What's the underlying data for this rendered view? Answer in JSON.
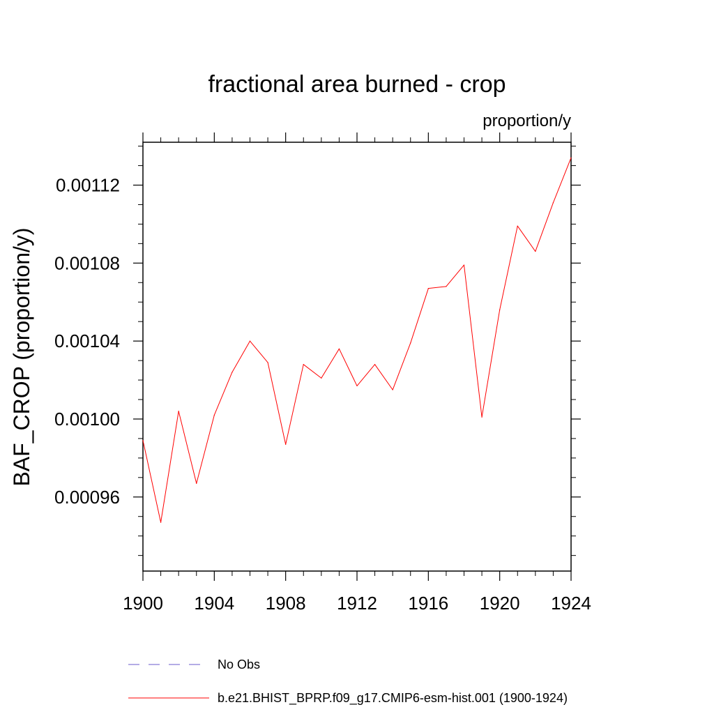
{
  "chart_data": {
    "type": "line",
    "title": "fractional area burned - crop",
    "units_label": "proportion/y",
    "ylabel": "BAF_CROP  (proportion/y)",
    "xlabel": "",
    "xlim": [
      1900,
      1924
    ],
    "ylim": [
      0.000922,
      0.001142
    ],
    "x_ticks": [
      1900,
      1904,
      1908,
      1912,
      1916,
      1920,
      1924
    ],
    "x_tick_labels": [
      "1900",
      "1904",
      "1908",
      "1912",
      "1916",
      "1920",
      "1924"
    ],
    "y_ticks": [
      0.00096,
      0.001,
      0.00104,
      0.00108,
      0.00112
    ],
    "y_tick_labels": [
      "0.00096",
      "0.00100",
      "0.00104",
      "0.00108",
      "0.00112"
    ],
    "grid": false,
    "series": [
      {
        "name": "b.e21.BHIST_BPRP.f09_g17.CMIP6-esm-hist.001 (1900-1924)",
        "color": "#ff0000",
        "style": "solid",
        "x": [
          1900,
          1901,
          1902,
          1903,
          1904,
          1905,
          1906,
          1907,
          1908,
          1909,
          1910,
          1911,
          1912,
          1913,
          1914,
          1915,
          1916,
          1917,
          1918,
          1919,
          1920,
          1921,
          1922,
          1923,
          1924
        ],
        "values": [
          0.000989,
          0.000947,
          0.001004,
          0.000967,
          0.001002,
          0.001024,
          0.00104,
          0.001029,
          0.000987,
          0.001028,
          0.001021,
          0.001036,
          0.001017,
          0.001028,
          0.001015,
          0.001039,
          0.001067,
          0.001068,
          0.001079,
          0.001001,
          0.001056,
          0.001099,
          0.001086,
          0.001111,
          0.001134
        ]
      }
    ],
    "legend": {
      "placement": "bottom",
      "entries": [
        {
          "label": "No Obs",
          "color": "#6a5acd",
          "style": "dashed"
        },
        {
          "label": "b.e21.BHIST_BPRP.f09_g17.CMIP6-esm-hist.001 (1900-1924)",
          "color": "#ff0000",
          "style": "solid"
        }
      ]
    }
  }
}
